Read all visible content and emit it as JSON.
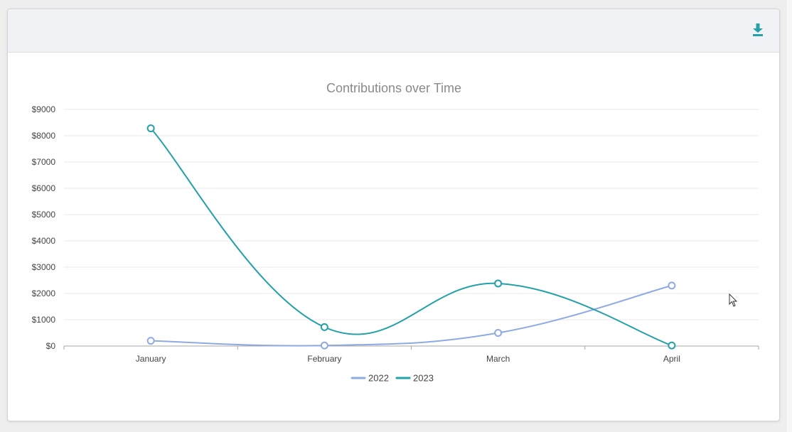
{
  "icons": {
    "download": "download-icon",
    "cursor": "mouse-cursor-icon"
  },
  "colors": {
    "series_2022": "#8fa9e3",
    "series_2023": "#23a0a8",
    "accent": "#23a0a8",
    "title": "#8a8a8a",
    "grid": "#e8e8e8",
    "tick": "#444444"
  },
  "chart_data": {
    "type": "line",
    "title": "Contributions over Time",
    "xlabel": "",
    "ylabel": "",
    "categories": [
      "January",
      "February",
      "March",
      "April"
    ],
    "ylim": [
      0,
      9000
    ],
    "yticks": [
      0,
      1000,
      2000,
      3000,
      4000,
      5000,
      6000,
      7000,
      8000,
      9000
    ],
    "ytick_labels": [
      "$0",
      "$1000",
      "$2000",
      "$3000",
      "$4000",
      "$5000",
      "$6000",
      "$7000",
      "$8000",
      "$9000"
    ],
    "grid": true,
    "smooth": true,
    "legend": "bottom",
    "series": [
      {
        "name": "2022",
        "values": [
          200,
          20,
          500,
          2300
        ]
      },
      {
        "name": "2023",
        "values": [
          8280,
          720,
          2380,
          20
        ]
      }
    ]
  }
}
